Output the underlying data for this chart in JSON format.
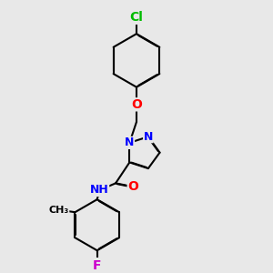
{
  "background_color": "#e8e8e8",
  "bond_color": "#000000",
  "bond_width": 1.5,
  "atoms": {
    "Cl": {
      "color": "#00bb00"
    },
    "O": {
      "color": "#ff0000"
    },
    "N": {
      "color": "#0000ff"
    },
    "H": {
      "color": "#888888"
    },
    "F": {
      "color": "#cc00cc"
    },
    "C": {
      "color": "#000000"
    }
  },
  "figsize": [
    3.0,
    3.0
  ],
  "dpi": 100
}
